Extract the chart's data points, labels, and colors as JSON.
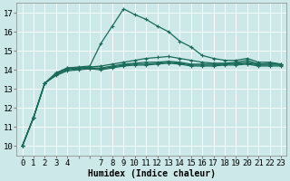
{
  "xlabel": "Humidex (Indice chaleur)",
  "background_color": "#cce8e8",
  "grid_color": "#aacccc",
  "line_color": "#1a6b5a",
  "xlim": [
    -0.5,
    23.5
  ],
  "ylim": [
    9.5,
    17.5
  ],
  "ytick_min": 10,
  "ytick_max": 17,
  "xtick_labels": [
    "0",
    "1",
    "2",
    "3",
    "4",
    "",
    "",
    "7",
    "8",
    "9",
    "10",
    "11",
    "12",
    "13",
    "14",
    "15",
    "16",
    "17",
    "18",
    "19",
    "20",
    "21",
    "22",
    "23"
  ],
  "lines": [
    [
      10.0,
      11.5,
      13.3,
      13.8,
      14.1,
      14.15,
      14.2,
      15.4,
      16.3,
      17.2,
      16.9,
      16.65,
      16.3,
      16.0,
      15.5,
      15.2,
      14.75,
      14.6,
      14.5,
      14.5,
      14.6,
      14.4,
      14.4,
      14.3
    ],
    [
      10.0,
      11.5,
      13.3,
      13.85,
      14.1,
      14.1,
      14.15,
      14.2,
      14.3,
      14.4,
      14.5,
      14.6,
      14.65,
      14.7,
      14.6,
      14.5,
      14.4,
      14.35,
      14.35,
      14.4,
      14.5,
      14.3,
      14.35,
      14.3
    ],
    [
      10.0,
      11.5,
      13.3,
      13.75,
      14.05,
      14.1,
      14.1,
      14.1,
      14.2,
      14.3,
      14.35,
      14.4,
      14.4,
      14.45,
      14.4,
      14.3,
      14.3,
      14.3,
      14.3,
      14.35,
      14.4,
      14.3,
      14.3,
      14.3
    ],
    [
      10.0,
      11.5,
      13.3,
      13.75,
      14.0,
      14.05,
      14.1,
      14.05,
      14.15,
      14.25,
      14.3,
      14.3,
      14.35,
      14.4,
      14.35,
      14.25,
      14.25,
      14.25,
      14.3,
      14.3,
      14.35,
      14.25,
      14.25,
      14.25
    ],
    [
      10.0,
      11.5,
      13.3,
      13.7,
      13.95,
      14.0,
      14.05,
      14.0,
      14.1,
      14.2,
      14.25,
      14.25,
      14.3,
      14.35,
      14.3,
      14.2,
      14.2,
      14.2,
      14.25,
      14.25,
      14.3,
      14.2,
      14.2,
      14.2
    ]
  ],
  "fontsize_label": 7,
  "fontsize_tick": 6.5
}
